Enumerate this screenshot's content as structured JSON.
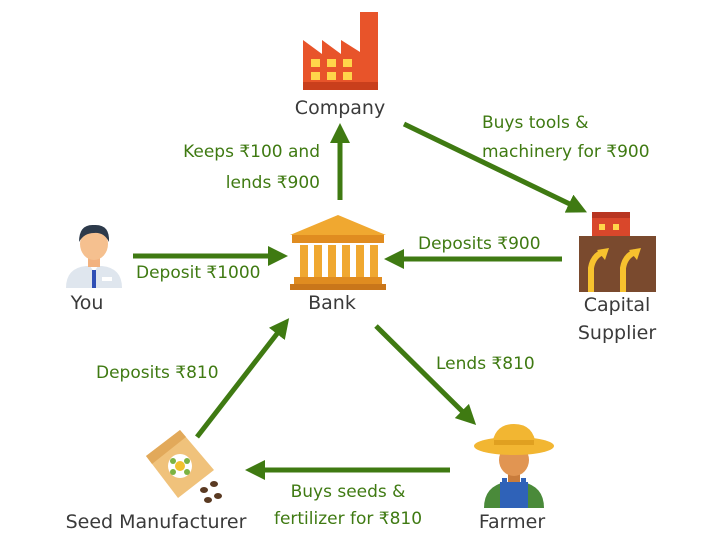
{
  "nodes": {
    "company": {
      "label": "Company",
      "icon": "factory-icon"
    },
    "you": {
      "label": "You",
      "icon": "person-icon"
    },
    "bank": {
      "label": "Bank",
      "icon": "bank-building-icon"
    },
    "capital_supplier": {
      "label_line1": "Capital",
      "label_line2": "Supplier",
      "icon": "capital-machinery-icon"
    },
    "seed_manufacturer": {
      "label": "Seed Manufacturer",
      "icon": "seed-bag-icon"
    },
    "farmer": {
      "label": "Farmer",
      "icon": "farmer-icon"
    }
  },
  "edges": {
    "bank_to_company": {
      "line1": "Keeps ₹100 and",
      "line2": "lends ₹900"
    },
    "company_to_supplier": {
      "line1": "Buys tools &",
      "line2": "machinery for ₹900"
    },
    "you_to_bank": {
      "text": "Deposit ₹1000"
    },
    "supplier_to_bank": {
      "text": "Deposits ₹900"
    },
    "bank_to_farmer": {
      "text": "Lends ₹810"
    },
    "farmer_to_seed": {
      "line1": "Buys seeds &",
      "line2": "fertilizer for ₹810"
    },
    "seed_to_bank": {
      "text": "Deposits ₹810"
    }
  },
  "colors": {
    "arrow": "#3f7a12",
    "factory": "#e8542a",
    "bank": "#f0a830",
    "farmer_hat": "#f2b632"
  }
}
